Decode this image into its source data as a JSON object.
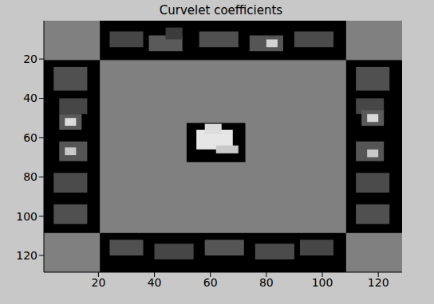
{
  "chart_data": {
    "type": "heatmap",
    "title": "Curvelet coefficients",
    "xlim": [
      0.5,
      128.5
    ],
    "ylim": [
      0.5,
      128.5
    ],
    "xticks": [
      20,
      40,
      60,
      80,
      100,
      120
    ],
    "yticks": [
      20,
      40,
      60,
      80,
      100,
      120
    ],
    "cells": [
      [
        0.5,
        128.5,
        0.5,
        128.5,
        128
      ],
      [
        20.5,
        108.5,
        0.5,
        20.5,
        0
      ],
      [
        20.5,
        108.5,
        108.5,
        128.5,
        0
      ],
      [
        0.5,
        20.5,
        20.5,
        108.5,
        0
      ],
      [
        108.5,
        128.5,
        20.5,
        108.5,
        0
      ],
      [
        24,
        36,
        6,
        14,
        70
      ],
      [
        38,
        50,
        8,
        16,
        90
      ],
      [
        44,
        50,
        4,
        10,
        60
      ],
      [
        56,
        70,
        6,
        14,
        80
      ],
      [
        74,
        86,
        8,
        16,
        85
      ],
      [
        80,
        84,
        10,
        14,
        210
      ],
      [
        90,
        104,
        6,
        14,
        75
      ],
      [
        24,
        36,
        112,
        120,
        80
      ],
      [
        40,
        54,
        114,
        122,
        70
      ],
      [
        58,
        72,
        112,
        120,
        85
      ],
      [
        76,
        90,
        114,
        122,
        75
      ],
      [
        92,
        104,
        112,
        120,
        70
      ],
      [
        4,
        16,
        24,
        36,
        80
      ],
      [
        6,
        16,
        40,
        48,
        70
      ],
      [
        6,
        14,
        48,
        56,
        90
      ],
      [
        8,
        12,
        50,
        54,
        220
      ],
      [
        6,
        16,
        62,
        72,
        85
      ],
      [
        8,
        12,
        65,
        69,
        200
      ],
      [
        4,
        16,
        78,
        88,
        75
      ],
      [
        4,
        16,
        94,
        104,
        80
      ],
      [
        112,
        124,
        24,
        36,
        80
      ],
      [
        112,
        122,
        40,
        48,
        70
      ],
      [
        114,
        122,
        46,
        54,
        90
      ],
      [
        116,
        120,
        48,
        52,
        215
      ],
      [
        112,
        122,
        62,
        72,
        85
      ],
      [
        116,
        120,
        66,
        70,
        200
      ],
      [
        112,
        124,
        78,
        88,
        75
      ],
      [
        112,
        124,
        94,
        104,
        80
      ],
      [
        51.5,
        72.5,
        52.5,
        72.5,
        0
      ],
      [
        55,
        68,
        56,
        66,
        230
      ],
      [
        58,
        64,
        53,
        58,
        220
      ],
      [
        62,
        70,
        64,
        68,
        200
      ]
    ]
  }
}
